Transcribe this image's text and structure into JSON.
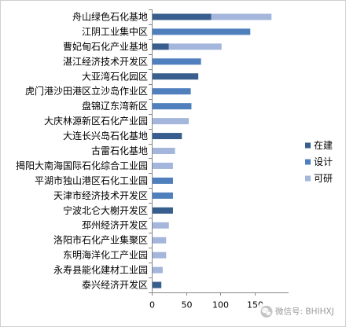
{
  "chart_data": {
    "type": "bar",
    "orientation": "horizontal",
    "stacked": true,
    "categories": [
      "舟山绿色石化基地",
      "江阴工业集中区",
      "曹妃甸石化产业基地",
      "湛江经济技术开发区",
      "大亚湾石化园区",
      "虎门港沙田港区立沙岛作业区",
      "盘锦辽东湾新区",
      "大庆林源新区石化产业园",
      "大连长兴岛石化基地",
      "古雷石化基地",
      "揭阳大南海国际石化综合工业园",
      "平湖市独山港区石化工业园",
      "天津市经济技术开发区",
      "宁波北仑大榭开发区",
      "邳州经济开发区",
      "洛阳市石化产业集聚区",
      "东明海洋化工产业园",
      "永寿县能化建材工业园",
      "泰兴经济开发区"
    ],
    "series": [
      {
        "name": "在建",
        "color": "#385E8E",
        "values": [
          87,
          0,
          25,
          0,
          68,
          0,
          0,
          0,
          44,
          0,
          0,
          0,
          0,
          31,
          0,
          0,
          0,
          0,
          14
        ]
      },
      {
        "name": "设计",
        "color": "#4F80BD",
        "values": [
          0,
          144,
          0,
          72,
          0,
          57,
          58,
          0,
          0,
          0,
          0,
          31,
          31,
          0,
          0,
          0,
          0,
          0,
          0
        ]
      },
      {
        "name": "可研",
        "color": "#A4B6DB",
        "values": [
          88,
          0,
          77,
          0,
          0,
          0,
          0,
          54,
          0,
          34,
          31,
          0,
          0,
          0,
          25,
          21,
          21,
          16,
          0
        ]
      }
    ],
    "xlim": [
      0,
      200
    ],
    "xticks": [
      0,
      50,
      100,
      150
    ],
    "grid": false,
    "legend": "right"
  },
  "watermark": {
    "icon": "wechat-icon",
    "text": "微信号: BHIHXJ"
  }
}
